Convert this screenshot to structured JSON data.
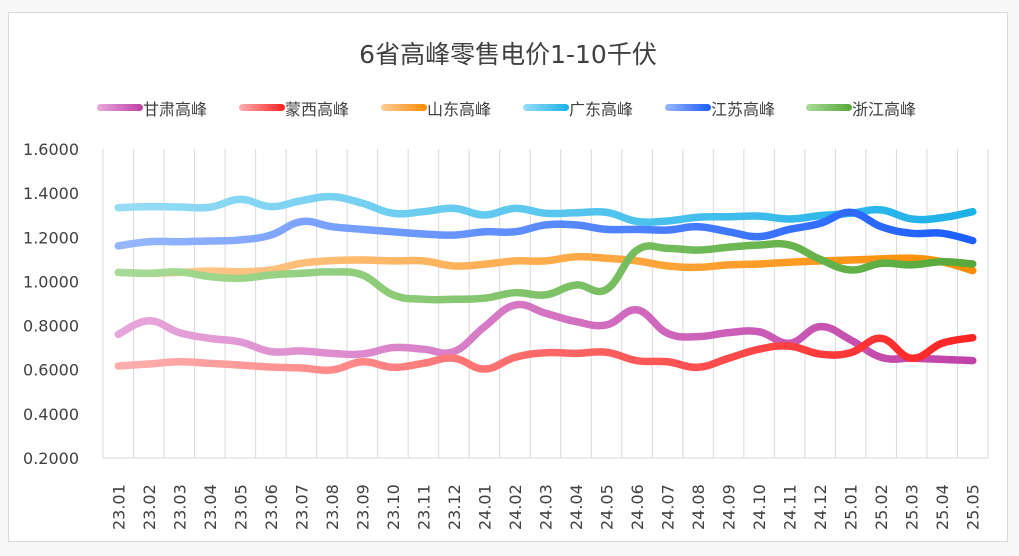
{
  "chart_data": {
    "type": "line",
    "title": "6省高峰零售电价1-10千伏",
    "xlabel": "",
    "ylabel": "",
    "ylim": [
      0.2,
      1.6
    ],
    "yticks": [
      "0.2000",
      "0.4000",
      "0.6000",
      "0.8000",
      "1.0000",
      "1.2000",
      "1.4000",
      "1.6000"
    ],
    "grid": "vertical",
    "legend_position": "top",
    "smooth": true,
    "categories": [
      "23.01",
      "23.02",
      "23.03",
      "23.04",
      "23.05",
      "23.06",
      "23.07",
      "23.08",
      "23.09",
      "23.10",
      "23.11",
      "23.12",
      "24.01",
      "24.02",
      "24.03",
      "24.04",
      "24.05",
      "24.06",
      "24.07",
      "24.08",
      "24.09",
      "24.10",
      "24.11",
      "24.12",
      "25.01",
      "25.02",
      "25.03",
      "25.04",
      "25.05"
    ],
    "series": [
      {
        "name": "甘肃高峰",
        "color_start": "#e8a8dc",
        "color_end": "#c040a8",
        "values": [
          0.76,
          0.822,
          0.768,
          0.742,
          0.726,
          0.682,
          0.685,
          0.674,
          0.671,
          0.7,
          0.693,
          0.682,
          0.795,
          0.893,
          0.856,
          0.818,
          0.803,
          0.871,
          0.765,
          0.75,
          0.768,
          0.772,
          0.72,
          0.795,
          0.735,
          0.656,
          0.652,
          0.647,
          0.641
        ]
      },
      {
        "name": "蒙西高峰",
        "color_start": "#ffb0b0",
        "color_end": "#ff2020",
        "values": [
          0.617,
          0.626,
          0.636,
          0.629,
          0.621,
          0.612,
          0.608,
          0.599,
          0.636,
          0.611,
          0.629,
          0.652,
          0.603,
          0.656,
          0.677,
          0.674,
          0.679,
          0.641,
          0.636,
          0.611,
          0.652,
          0.693,
          0.707,
          0.671,
          0.677,
          0.742,
          0.652,
          0.72,
          0.745
        ]
      },
      {
        "name": "山东高峰",
        "color_start": "#ffcc99",
        "color_end": "#ff8c00",
        "values": [
          1.041,
          1.037,
          1.041,
          1.047,
          1.044,
          1.052,
          1.082,
          1.094,
          1.097,
          1.093,
          1.093,
          1.07,
          1.078,
          1.093,
          1.093,
          1.112,
          1.105,
          1.093,
          1.07,
          1.064,
          1.075,
          1.079,
          1.087,
          1.093,
          1.097,
          1.102,
          1.105,
          1.089,
          1.049
        ]
      },
      {
        "name": "广东高峰",
        "color_start": "#99ddf5",
        "color_end": "#1ab0e8",
        "values": [
          1.334,
          1.339,
          1.337,
          1.336,
          1.372,
          1.339,
          1.366,
          1.384,
          1.354,
          1.309,
          1.316,
          1.331,
          1.301,
          1.331,
          1.309,
          1.311,
          1.313,
          1.272,
          1.274,
          1.291,
          1.293,
          1.296,
          1.283,
          1.298,
          1.309,
          1.324,
          1.283,
          1.289,
          1.316
        ]
      },
      {
        "name": "江苏高峰",
        "color_start": "#99b8ff",
        "color_end": "#1a5cff",
        "values": [
          1.161,
          1.18,
          1.18,
          1.183,
          1.188,
          1.21,
          1.271,
          1.248,
          1.236,
          1.225,
          1.215,
          1.21,
          1.225,
          1.225,
          1.256,
          1.256,
          1.236,
          1.236,
          1.233,
          1.248,
          1.225,
          1.203,
          1.236,
          1.263,
          1.313,
          1.248,
          1.218,
          1.218,
          1.185
        ]
      },
      {
        "name": "浙江高峰",
        "color_start": "#a8dc98",
        "color_end": "#55a838",
        "values": [
          1.041,
          1.037,
          1.043,
          1.022,
          1.014,
          1.029,
          1.037,
          1.043,
          1.029,
          0.939,
          0.919,
          0.919,
          0.924,
          0.949,
          0.939,
          0.984,
          0.964,
          1.142,
          1.15,
          1.142,
          1.155,
          1.165,
          1.165,
          1.1,
          1.052,
          1.082,
          1.075,
          1.089,
          1.079
        ]
      }
    ]
  }
}
